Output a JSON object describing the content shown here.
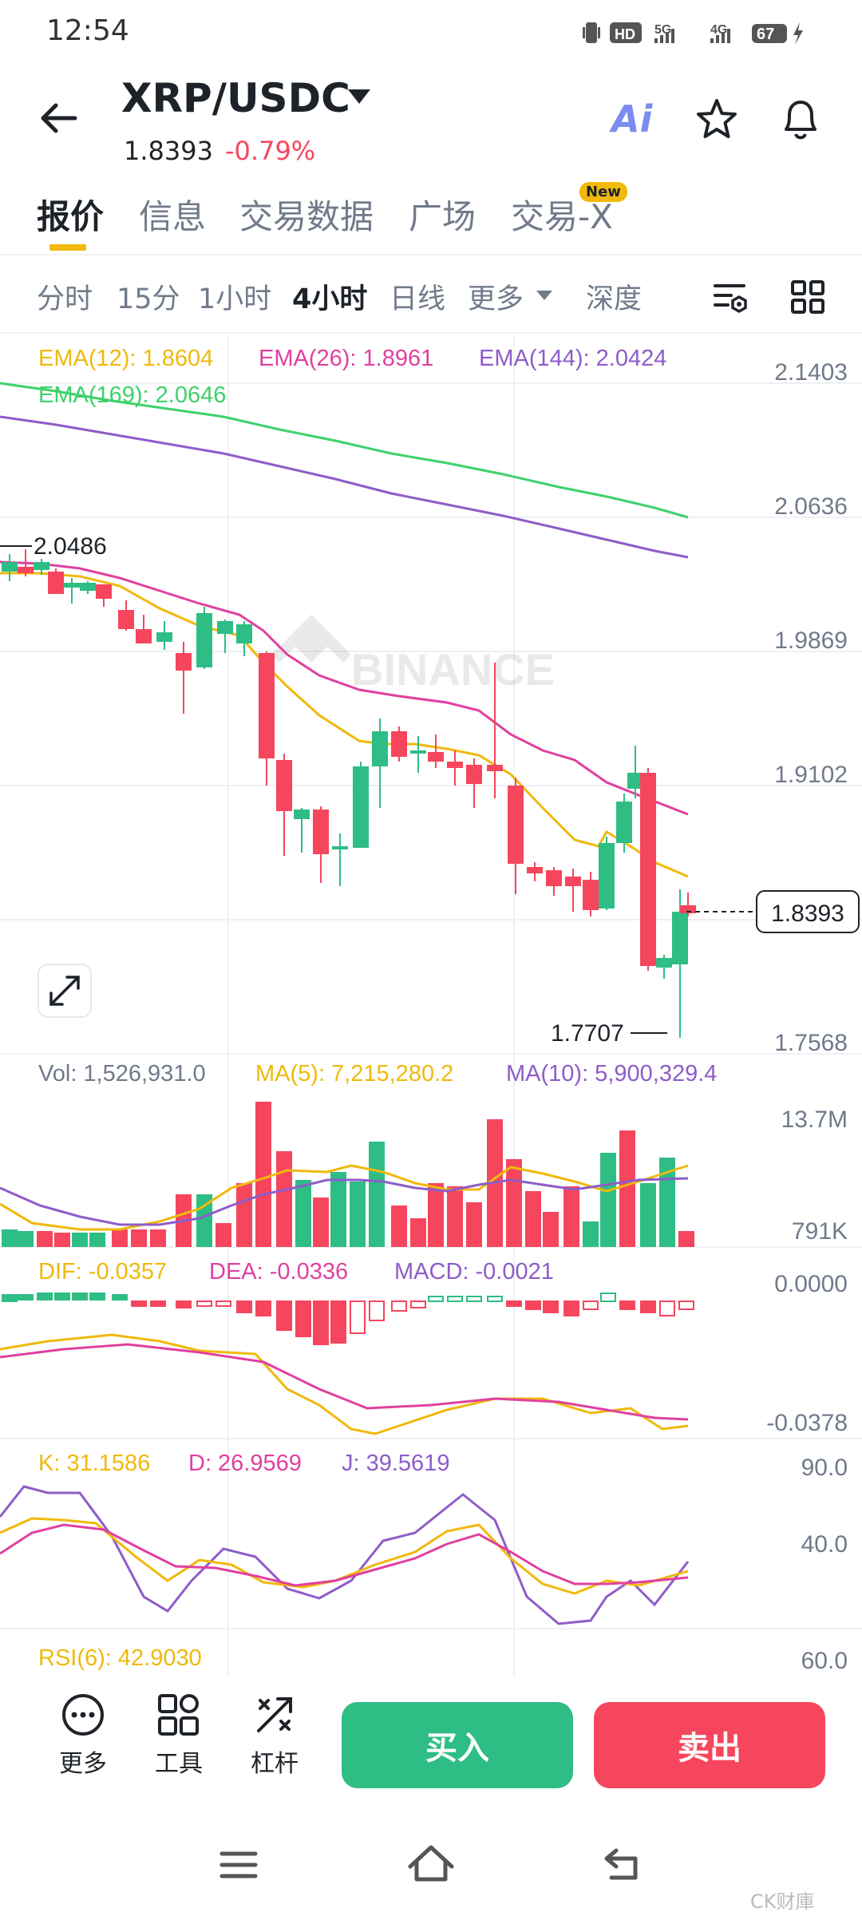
{
  "status_bar": {
    "time": "12:54",
    "hd": "HD",
    "net1": "5G",
    "net2": "4G",
    "battery": "67"
  },
  "header": {
    "pair": "XRP/USDC",
    "price": "1.8393",
    "change": "-0.79%",
    "ai_label": "Ai"
  },
  "tabs": [
    {
      "label": "报价",
      "active": true
    },
    {
      "label": "信息"
    },
    {
      "label": "交易数据"
    },
    {
      "label": "广场"
    },
    {
      "label": "交易-X",
      "badge": "New"
    }
  ],
  "intervals": [
    {
      "label": "分时"
    },
    {
      "label": "15分"
    },
    {
      "label": "1小时"
    },
    {
      "label": "4小时",
      "active": true
    },
    {
      "label": "日线"
    },
    {
      "label": "更多"
    },
    {
      "label": "深度"
    }
  ],
  "chart": {
    "watermark": "BINANCE",
    "ema12": "EMA(12): 1.8604",
    "ema26": "EMA(26): 1.8961",
    "ema144": "EMA(144): 2.0424",
    "ema169": "EMA(169): 2.0646",
    "price_axis": [
      "2.1403",
      "2.0636",
      "1.9869",
      "1.9102",
      "1.8393",
      "1.7568"
    ],
    "high_label": "2.0486",
    "low_label": "1.7707",
    "current_price": "1.8393",
    "vol_label": "Vol: 1,526,931.0",
    "ma5_label": "MA(5): 7,215,280.2",
    "ma10_label": "MA(10): 5,900,329.4",
    "vol_axis": [
      "13.7M",
      "791K"
    ],
    "dif": "DIF: -0.0357",
    "dea": "DEA: -0.0336",
    "macd": "MACD: -0.0021",
    "macd_axis": [
      "0.0000",
      "-0.0378"
    ],
    "k": "K: 31.1586",
    "d": "D: 26.9569",
    "j": "J: 39.5619",
    "kdj_axis": [
      "90.0",
      "40.0"
    ],
    "rsi": "RSI(6): 42.9030",
    "rsi_axis": "60.0"
  },
  "colors": {
    "up": "#2ebd85",
    "down": "#f6465d",
    "ema12": "#f0b90b",
    "ema26": "#e040a0",
    "ema144": "#8e5cc9",
    "ema169": "#3fd16a"
  },
  "bottom": {
    "more": "更多",
    "tools": "工具",
    "leverage": "杠杆",
    "buy": "买入",
    "sell": "卖出"
  },
  "watermark_footer": "CK财庫"
}
